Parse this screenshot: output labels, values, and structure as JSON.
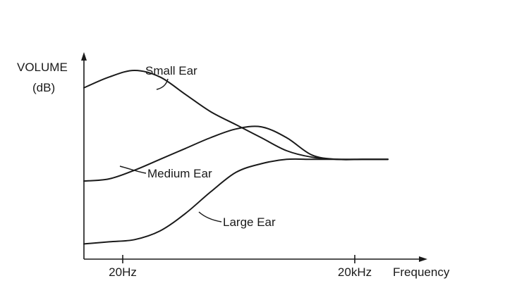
{
  "chart_data": {
    "type": "line",
    "title": "",
    "ylabel": "VOLUME",
    "ylabel_unit": "(dB)",
    "xlabel": "Frequency",
    "x_ticks": [
      "20Hz",
      "20kHz"
    ],
    "grid": false,
    "legend": "none",
    "series": [
      {
        "name": "Small Ear",
        "x": [
          0,
          0.1,
          0.2,
          0.3,
          0.4,
          0.5,
          0.6,
          0.7,
          0.8,
          0.9,
          1.0,
          1.1,
          1.2
        ],
        "values": [
          0.79,
          0.84,
          0.87,
          0.84,
          0.76,
          0.68,
          0.62,
          0.56,
          0.5,
          0.47,
          0.46,
          0.46,
          0.46
        ]
      },
      {
        "name": "Medium Ear",
        "x": [
          0,
          0.1,
          0.2,
          0.3,
          0.4,
          0.5,
          0.6,
          0.7,
          0.8,
          0.9,
          1.0,
          1.1,
          1.2
        ],
        "values": [
          0.36,
          0.37,
          0.41,
          0.46,
          0.51,
          0.56,
          0.6,
          0.61,
          0.56,
          0.48,
          0.46,
          0.46,
          0.46
        ]
      },
      {
        "name": "Large Ear",
        "x": [
          0,
          0.1,
          0.2,
          0.3,
          0.4,
          0.5,
          0.6,
          0.7,
          0.8,
          0.9,
          1.0,
          1.1,
          1.2
        ],
        "values": [
          0.07,
          0.08,
          0.09,
          0.13,
          0.21,
          0.31,
          0.4,
          0.44,
          0.46,
          0.46,
          0.46,
          0.46,
          0.46
        ]
      }
    ]
  }
}
